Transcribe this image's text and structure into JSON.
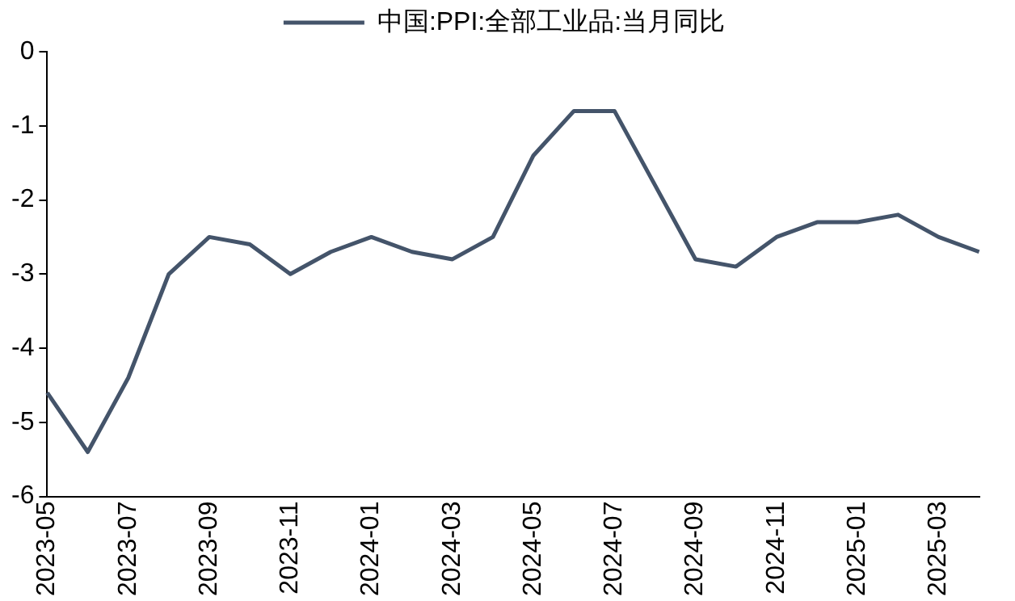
{
  "chart_data": {
    "type": "line",
    "categories": [
      "2023-05",
      null,
      "2023-07",
      null,
      "2023-09",
      null,
      "2023-11",
      null,
      "2024-01",
      null,
      "2024-03",
      null,
      "2024-05",
      null,
      "2024-07",
      null,
      "2024-09",
      null,
      "2024-11",
      null,
      "2025-01",
      null,
      "2025-03",
      null
    ],
    "series": [
      {
        "name": "中国:PPI:全部工业品:当月同比",
        "color": "#44546a",
        "values": [
          -4.6,
          -5.4,
          -4.4,
          -3.0,
          -2.5,
          -2.6,
          -3.0,
          -2.7,
          -2.5,
          -2.7,
          -2.8,
          -2.5,
          -1.4,
          -0.8,
          -0.8,
          -1.8,
          -2.8,
          -2.9,
          -2.5,
          -2.3,
          -2.3,
          -2.2,
          -2.5,
          -2.7
        ]
      }
    ],
    "ylim": [
      -6,
      0
    ],
    "yticks": [
      -6,
      -5,
      -4,
      -3,
      -2,
      -1,
      0
    ],
    "grid": false,
    "legend": "top",
    "marker": "none",
    "line_style": "solid"
  }
}
